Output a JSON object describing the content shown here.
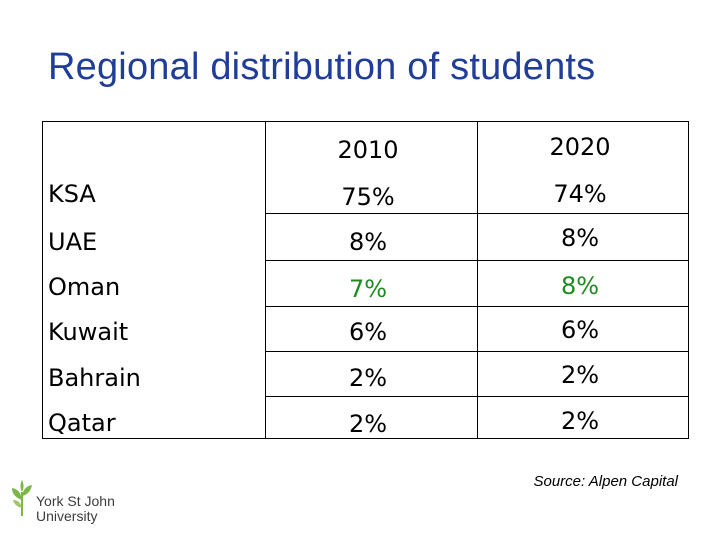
{
  "title": "Regional distribution of students",
  "table": {
    "headers": [
      "",
      "2010",
      "2020"
    ],
    "rows": [
      {
        "region": "KSA",
        "y2010": "75%",
        "y2020": "74%"
      },
      {
        "region": "UAE",
        "y2010": "8%",
        "y2020": "8%"
      },
      {
        "region": "Oman",
        "y2010": "7%",
        "y2020": "8%"
      },
      {
        "region": "Kuwait",
        "y2010": "6%",
        "y2020": "6%"
      },
      {
        "region": "Bahrain",
        "y2010": "2%",
        "y2020": "2%"
      },
      {
        "region": "Qatar",
        "y2010": "2%",
        "y2020": "2%"
      }
    ],
    "highlight_row": "Oman",
    "highlight_color": "#1f8a1f"
  },
  "source": "Source: Alpen Capital",
  "logo": {
    "line1": "York St John",
    "line2": "University",
    "icon": "leaf-tree-icon"
  },
  "colors": {
    "title": "#1f3d99",
    "logo_green": "#7ab648"
  }
}
